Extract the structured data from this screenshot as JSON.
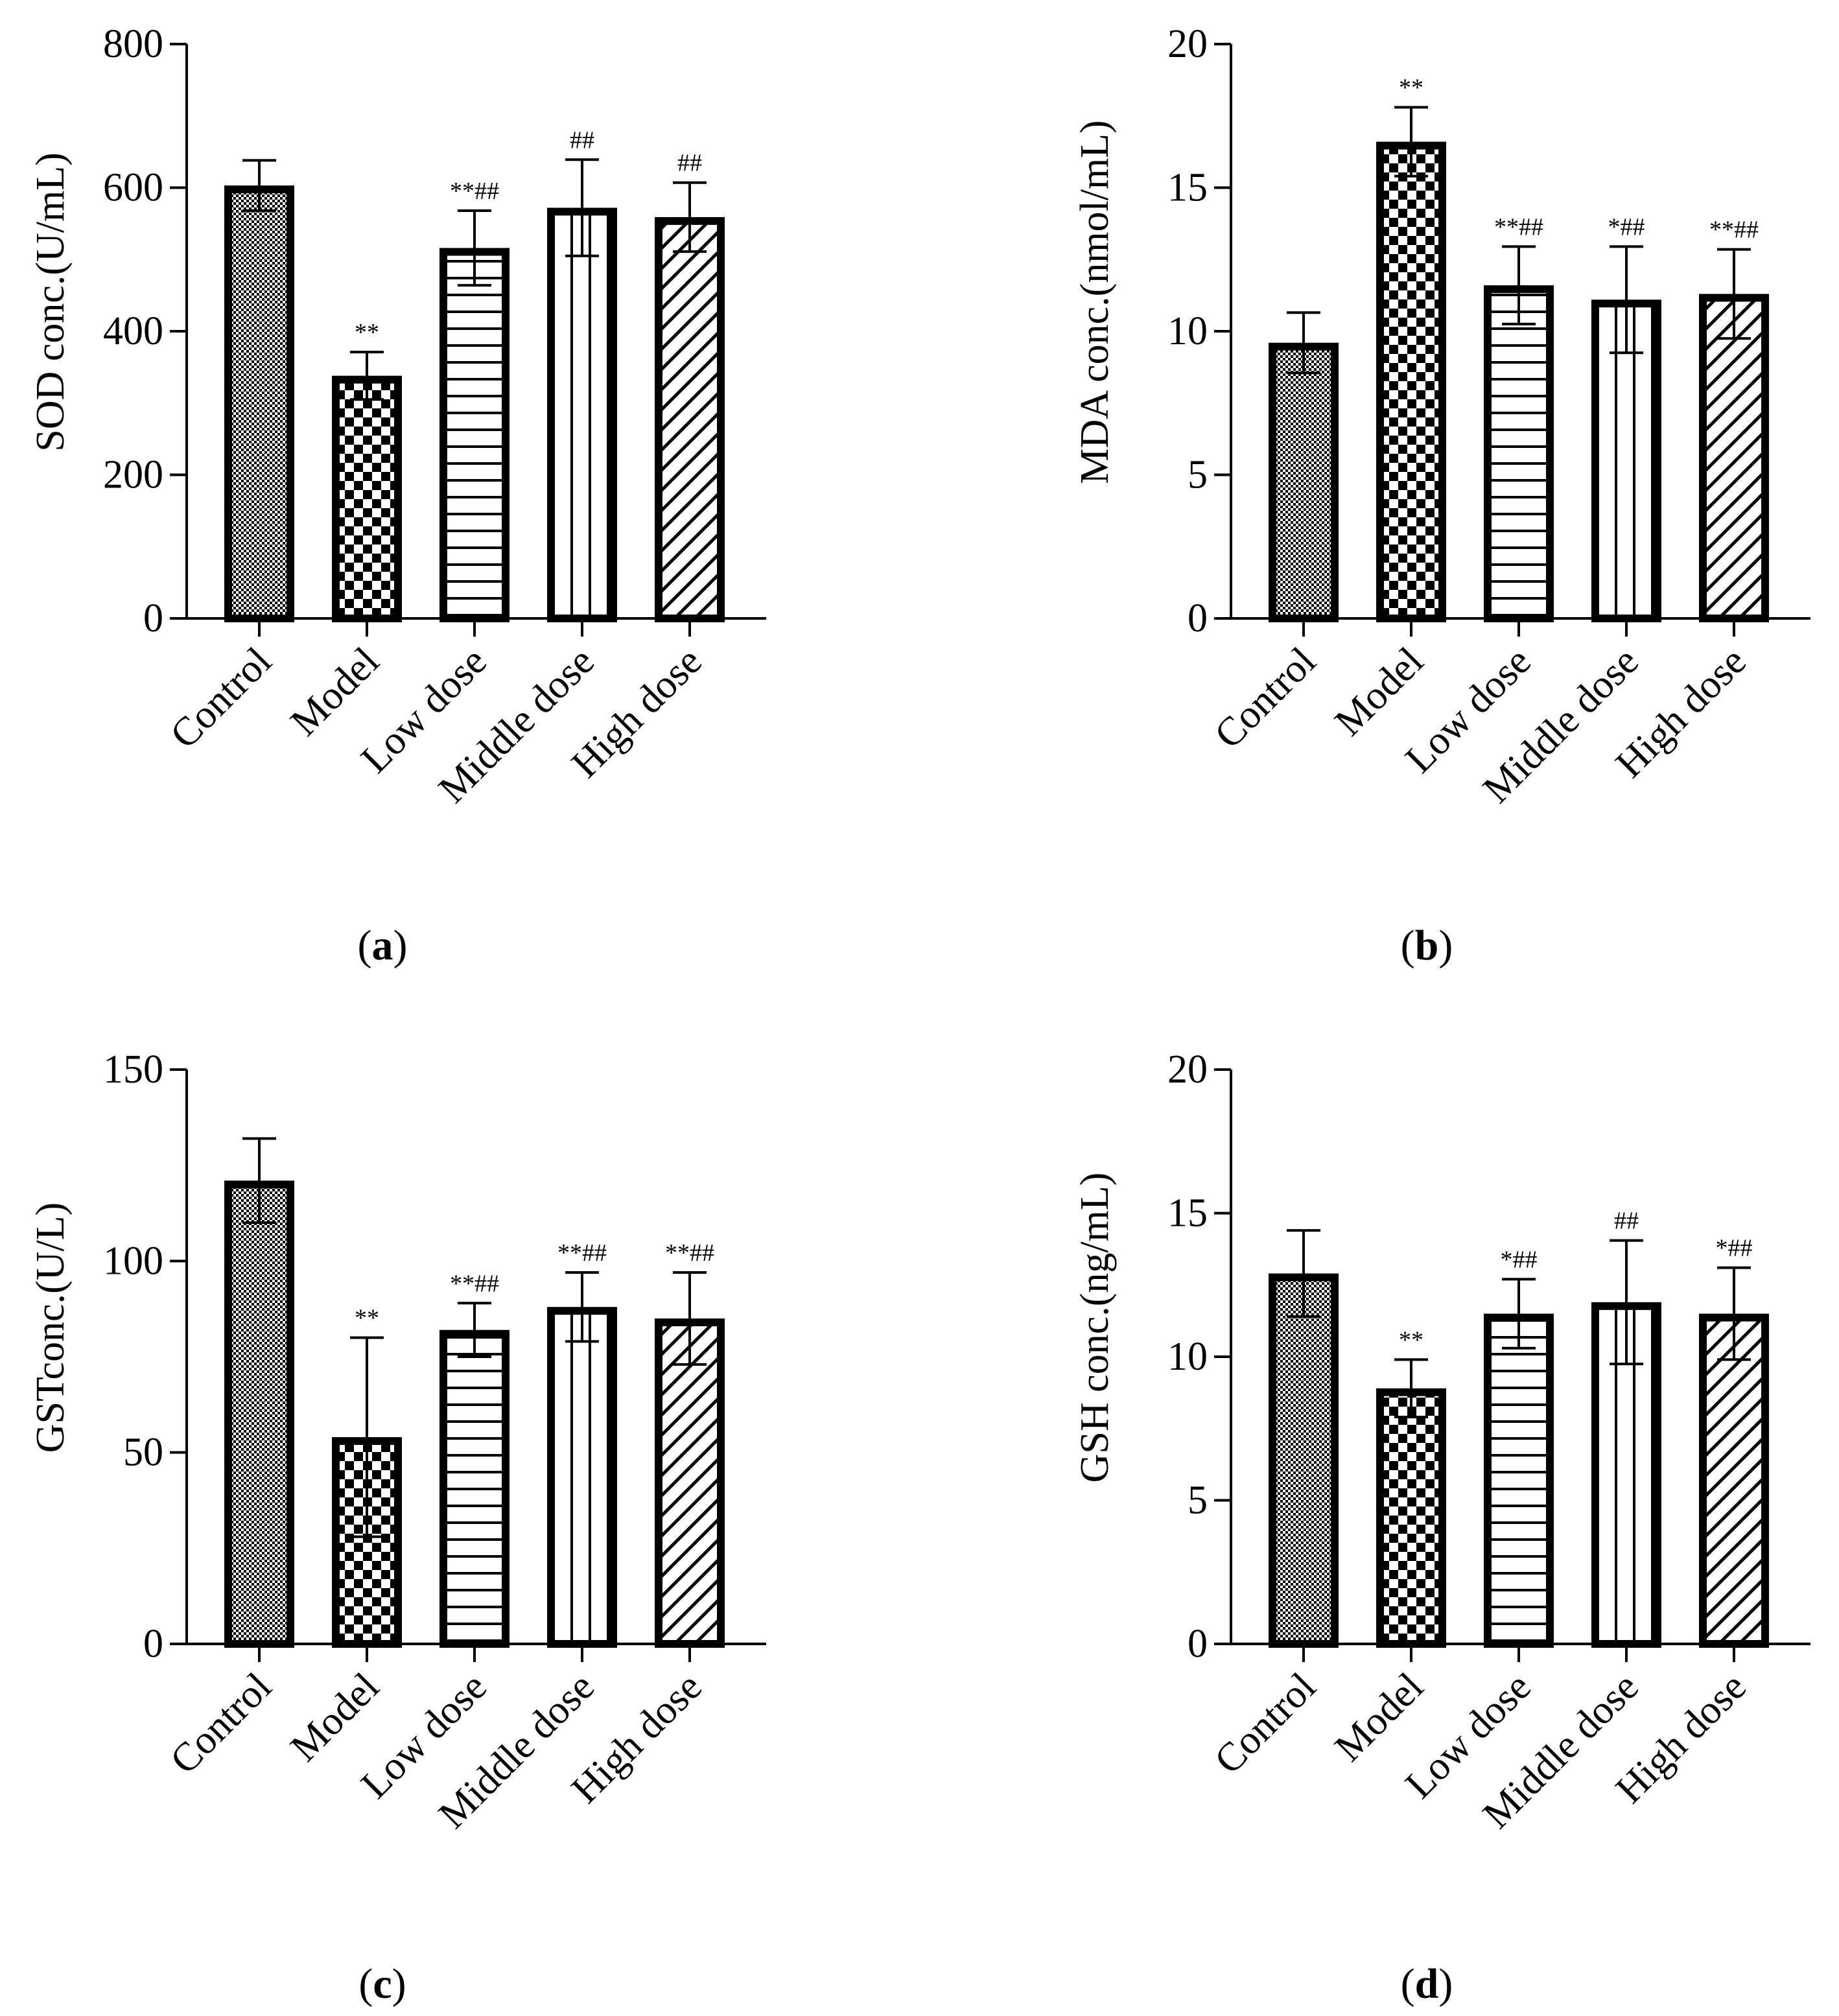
{
  "figure": {
    "background": "#ffffff",
    "ink": "#000000"
  },
  "chart_data": [
    {
      "id": "a",
      "type": "bar",
      "panel_letter": "a",
      "categories": [
        "Control",
        "Model",
        "Low dose",
        "Middle dose",
        "High dose"
      ],
      "patterns": [
        "fine-check",
        "checker",
        "hlines",
        "vlines",
        "diag"
      ],
      "values": [
        603,
        338,
        516,
        572,
        559
      ],
      "errors": [
        35,
        33,
        52,
        67,
        48
      ],
      "annotations": [
        "",
        "**",
        "**##",
        "##",
        "##"
      ],
      "ylabel": "SOD conc.(U/mL)",
      "ylim": [
        0,
        800
      ],
      "yticks": [
        0,
        200,
        400,
        600,
        800
      ],
      "ytick_labels": [
        "0",
        "200",
        "400",
        "600",
        "800"
      ]
    },
    {
      "id": "b",
      "type": "bar",
      "panel_letter": "b",
      "categories": [
        "Control",
        "Model",
        "Low dose",
        "Middle dose",
        "High dose"
      ],
      "patterns": [
        "fine-check",
        "checker",
        "hlines",
        "vlines",
        "diag"
      ],
      "values": [
        9.6,
        16.6,
        11.6,
        11.1,
        11.3
      ],
      "errors": [
        1.05,
        1.2,
        1.35,
        1.85,
        1.55
      ],
      "annotations": [
        "",
        "**",
        "**##",
        "*##",
        "**##"
      ],
      "ylabel": "MDA conc.(nmol/mL)",
      "ylim": [
        0,
        20
      ],
      "yticks": [
        0,
        5,
        10,
        15,
        20
      ],
      "ytick_labels": [
        "0",
        "5",
        "10",
        "15",
        "20"
      ]
    },
    {
      "id": "c",
      "type": "bar",
      "panel_letter": "c",
      "categories": [
        "Control",
        "Model",
        "Low dose",
        "Middle dose",
        "High dose"
      ],
      "patterns": [
        "fine-check",
        "checker",
        "hlines",
        "vlines",
        "diag"
      ],
      "values": [
        121,
        54,
        82,
        88,
        85
      ],
      "errors": [
        11,
        26,
        7,
        9,
        12
      ],
      "annotations": [
        "",
        "**",
        "**##",
        "**##",
        "**##"
      ],
      "ylabel": "GSTconc.(U/L)",
      "ylim": [
        0,
        150
      ],
      "yticks": [
        0,
        50,
        100,
        150
      ],
      "ytick_labels": [
        "0",
        "50",
        "100",
        "150"
      ]
    },
    {
      "id": "d",
      "type": "bar",
      "panel_letter": "d",
      "categories": [
        "Control",
        "Model",
        "Low dose",
        "Middle dose",
        "High dose"
      ],
      "patterns": [
        "fine-check",
        "checker",
        "hlines",
        "vlines",
        "diag"
      ],
      "values": [
        12.9,
        8.9,
        11.5,
        11.9,
        11.5
      ],
      "errors": [
        1.5,
        1.0,
        1.2,
        2.15,
        1.6
      ],
      "annotations": [
        "",
        "**",
        "*##",
        "##",
        "*##"
      ],
      "ylabel": "GSH conc.(ng/mL)",
      "ylim": [
        0,
        20
      ],
      "yticks": [
        0,
        5,
        10,
        15,
        20
      ],
      "ytick_labels": [
        "0",
        "5",
        "10",
        "15",
        "20"
      ]
    }
  ]
}
